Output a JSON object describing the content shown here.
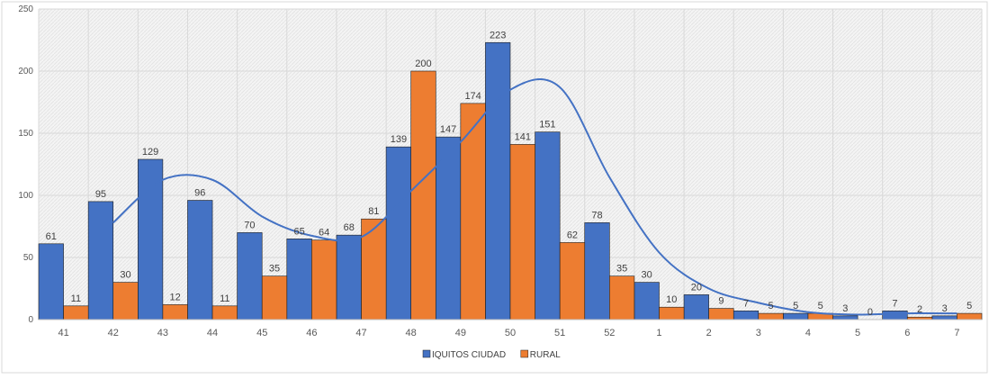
{
  "chart_data": {
    "type": "bar",
    "title": "",
    "xlabel": "",
    "ylabel": "",
    "ylim": [
      0,
      250
    ],
    "yticks": [
      0,
      50,
      100,
      150,
      200,
      250
    ],
    "grid": true,
    "legend_position": "bottom",
    "categories": [
      "41",
      "42",
      "43",
      "44",
      "45",
      "46",
      "47",
      "48",
      "49",
      "50",
      "51",
      "52",
      "1",
      "2",
      "3",
      "4",
      "5",
      "6",
      "7"
    ],
    "series": [
      {
        "name": "IQUITOS CIUDAD",
        "color": "#4472C4",
        "values": [
          61,
          95,
          129,
          96,
          70,
          65,
          68,
          139,
          147,
          223,
          151,
          78,
          30,
          20,
          7,
          5,
          3,
          7,
          3
        ],
        "labels": [
          "61",
          "95",
          "129",
          "96",
          "70",
          "65",
          "68",
          "139",
          "147",
          "223",
          "151",
          "78",
          "30",
          "20",
          "7",
          "5",
          "3",
          "7",
          "3"
        ]
      },
      {
        "name": "RURAL",
        "color": "#ED7D31",
        "values": [
          11,
          30,
          12,
          11,
          35,
          64,
          81,
          200,
          174,
          141,
          62,
          35,
          10,
          9,
          5,
          5,
          0,
          2,
          5
        ],
        "labels": [
          "11",
          "30",
          "12",
          "11",
          "35",
          "64",
          "81",
          "200",
          "174",
          "141",
          "62",
          "35",
          "10",
          "9",
          "5",
          "5",
          "0",
          "2",
          "5"
        ]
      }
    ],
    "trendline": {
      "color": "#4472C4",
      "values": [
        null,
        78,
        112.5,
        112.5,
        83,
        67.5,
        66.5,
        103.5,
        143,
        185,
        187,
        114.5,
        54,
        25,
        13.5,
        6,
        4,
        5,
        5
      ]
    }
  }
}
